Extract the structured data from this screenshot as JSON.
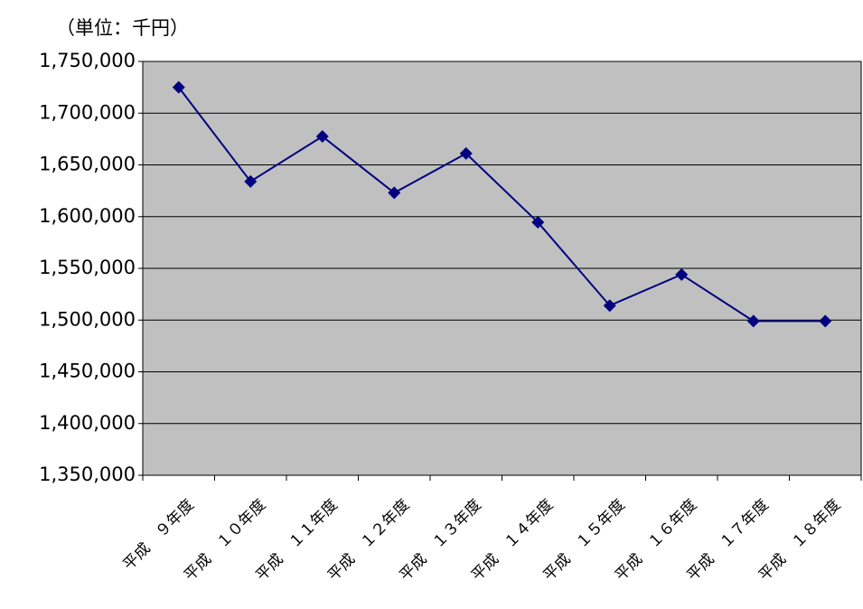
{
  "chart_data": {
    "type": "line",
    "subtitle": "（単位：千円）",
    "categories": [
      "平成　９年度",
      "平成　１０年度",
      "平成　１１年度",
      "平成　１２年度",
      "平成　１３年度",
      "平成　１４年度",
      "平成　１５年度",
      "平成　１６年度",
      "平成　１７年度",
      "平成　１８年度"
    ],
    "series": [
      {
        "color": "#000080",
        "values": [
          1725000,
          1634000,
          1677500,
          1623000,
          1661000,
          1594500,
          1514000,
          1544000,
          1499000,
          1499000
        ]
      }
    ],
    "ylim": [
      1350000,
      1750000
    ],
    "yticks": [
      {
        "value": 1350000,
        "label": "1,350,000"
      },
      {
        "value": 1400000,
        "label": "1,400,000"
      },
      {
        "value": 1450000,
        "label": "1,450,000"
      },
      {
        "value": 1500000,
        "label": "1,500,000"
      },
      {
        "value": 1550000,
        "label": "1,550,000"
      },
      {
        "value": 1600000,
        "label": "1,600,000"
      },
      {
        "value": 1650000,
        "label": "1,650,000"
      },
      {
        "value": 1700000,
        "label": "1,700,000"
      },
      {
        "value": 1750000,
        "label": "1,750,000"
      }
    ],
    "grid": true
  }
}
